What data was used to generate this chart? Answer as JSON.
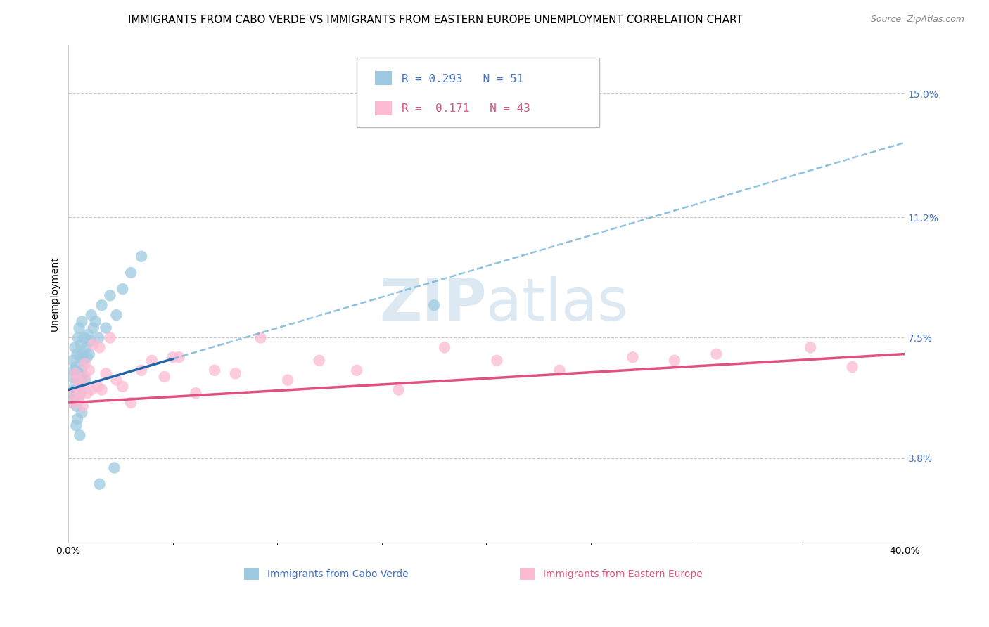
{
  "title": "IMMIGRANTS FROM CABO VERDE VS IMMIGRANTS FROM EASTERN EUROPE UNEMPLOYMENT CORRELATION CHART",
  "source": "Source: ZipAtlas.com",
  "ylabel": "Unemployment",
  "yticks": [
    3.8,
    7.5,
    11.2,
    15.0
  ],
  "ytick_labels": [
    "3.8%",
    "7.5%",
    "11.2%",
    "15.0%"
  ],
  "xmin": 0.0,
  "xmax": 40.0,
  "ymin": 1.2,
  "ymax": 16.5,
  "series1_name": "Immigrants from Cabo Verde",
  "series1_R": "0.293",
  "series1_N": "51",
  "series1_color": "#9ecae1",
  "series1_line_color": "#2166ac",
  "series1_dashed_color": "#6baed6",
  "series2_name": "Immigrants from Eastern Europe",
  "series2_R": "0.171",
  "series2_N": "43",
  "series2_color": "#fcbad3",
  "series2_line_color": "#e05080",
  "background_color": "#ffffff",
  "grid_color": "#c8c8c8",
  "title_fontsize": 11,
  "label_fontsize": 10,
  "tick_fontsize": 10,
  "watermark_color": "#dce9f2",
  "watermark_fontsize": 60,
  "cabo_verde_x": [
    0.15,
    0.18,
    0.2,
    0.22,
    0.25,
    0.28,
    0.3,
    0.32,
    0.35,
    0.37,
    0.4,
    0.42,
    0.45,
    0.47,
    0.5,
    0.5,
    0.52,
    0.55,
    0.57,
    0.6,
    0.6,
    0.63,
    0.65,
    0.68,
    0.7,
    0.73,
    0.76,
    0.8,
    0.85,
    0.9,
    0.95,
    1.0,
    1.05,
    1.1,
    1.2,
    1.3,
    1.45,
    1.6,
    1.8,
    2.0,
    2.3,
    2.6,
    3.0,
    3.5,
    0.38,
    0.44,
    0.55,
    0.65,
    1.5,
    2.2,
    17.5
  ],
  "cabo_verde_y": [
    5.5,
    6.3,
    5.8,
    6.8,
    5.7,
    6.5,
    6.0,
    7.2,
    5.9,
    6.6,
    5.4,
    7.0,
    6.2,
    7.5,
    5.6,
    6.4,
    7.8,
    6.1,
    6.9,
    5.8,
    7.3,
    6.5,
    8.0,
    6.3,
    7.0,
    6.8,
    7.5,
    6.2,
    7.2,
    6.9,
    7.6,
    7.0,
    7.4,
    8.2,
    7.8,
    8.0,
    7.5,
    8.5,
    7.8,
    8.8,
    8.2,
    9.0,
    9.5,
    10.0,
    4.8,
    5.0,
    4.5,
    5.2,
    3.0,
    3.5,
    8.5
  ],
  "eastern_europe_x": [
    0.2,
    0.3,
    0.4,
    0.5,
    0.6,
    0.7,
    0.8,
    0.9,
    1.0,
    1.1,
    1.2,
    1.4,
    1.6,
    1.8,
    2.0,
    2.3,
    2.6,
    3.0,
    3.5,
    4.0,
    4.6,
    5.3,
    6.1,
    7.0,
    8.0,
    9.2,
    10.5,
    12.0,
    13.8,
    15.8,
    18.0,
    20.5,
    23.5,
    27.0,
    31.0,
    35.5,
    0.35,
    0.55,
    0.8,
    1.5,
    5.0,
    29.0,
    37.5
  ],
  "eastern_europe_y": [
    5.5,
    5.8,
    6.2,
    5.6,
    6.0,
    5.4,
    6.3,
    5.8,
    6.5,
    5.9,
    7.3,
    6.0,
    5.9,
    6.4,
    7.5,
    6.2,
    6.0,
    5.5,
    6.5,
    6.8,
    6.3,
    6.9,
    5.8,
    6.5,
    6.4,
    7.5,
    6.2,
    6.8,
    6.5,
    5.9,
    7.2,
    6.8,
    6.5,
    6.9,
    7.0,
    7.2,
    6.4,
    5.8,
    6.7,
    7.2,
    6.9,
    6.8,
    6.6
  ],
  "blue_line_x0": 0.0,
  "blue_line_y0": 5.9,
  "blue_line_x1": 40.0,
  "blue_line_y1": 13.5,
  "blue_solid_xmax": 5.0,
  "pink_line_x0": 0.0,
  "pink_line_y0": 5.5,
  "pink_line_x1": 40.0,
  "pink_line_y1": 7.0
}
